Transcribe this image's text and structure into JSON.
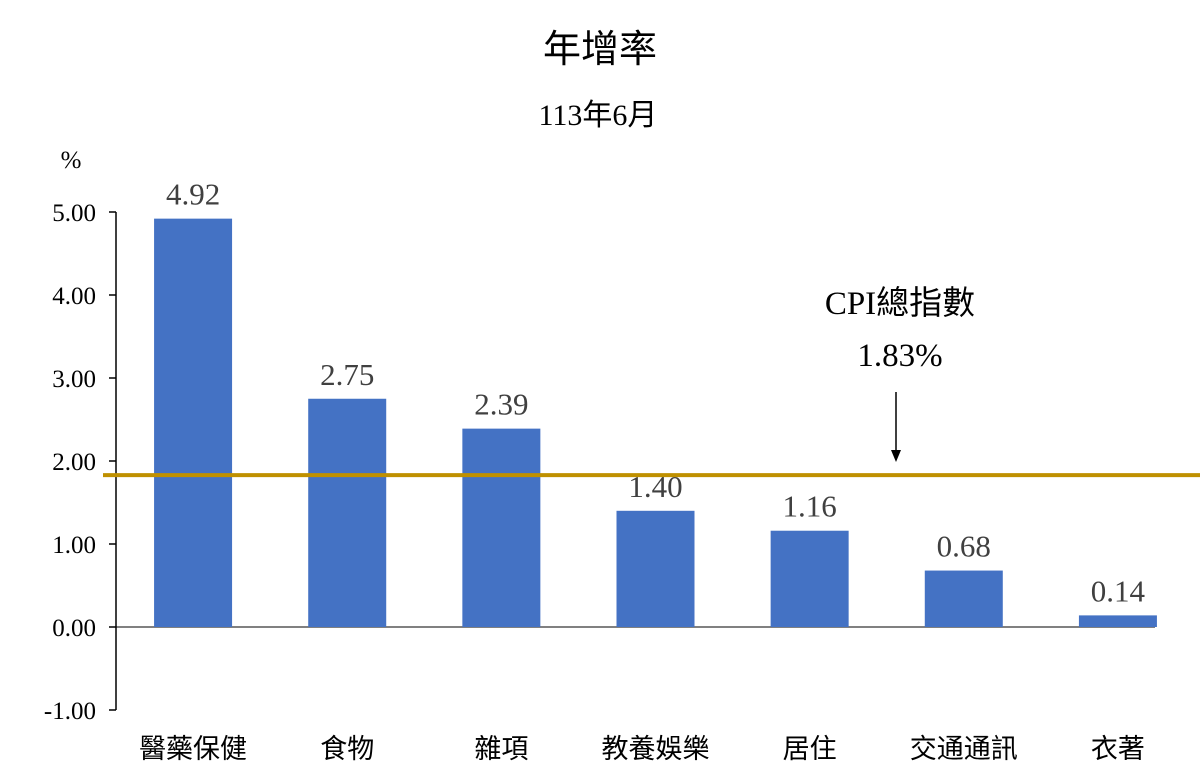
{
  "chart_data": {
    "type": "bar",
    "title": "年增率",
    "subtitle": "113年6月",
    "ylabel": "%",
    "xlabel": "",
    "categories": [
      "醫藥保健",
      "食物",
      "雜項",
      "教養娛樂",
      "居住",
      "交通通訊",
      "衣著"
    ],
    "values": [
      4.92,
      2.75,
      2.39,
      1.4,
      1.16,
      0.68,
      0.14
    ],
    "data_labels": [
      "4.92",
      "2.75",
      "2.39",
      "1.40",
      "1.16",
      "0.68",
      "0.14"
    ],
    "ylim": [
      -1,
      5
    ],
    "yticks": [
      5,
      4,
      3,
      2,
      1,
      0,
      -1
    ],
    "ytick_labels": [
      "5.00",
      "4.00",
      "3.00",
      "2.00",
      "1.00",
      "0.00",
      "-1.00"
    ],
    "grid": false,
    "reference_line": {
      "value": 1.83,
      "label_line1": "CPI總指數",
      "label_line2": "1.83%",
      "color": "#BF9000"
    },
    "colors": {
      "bar": "#4472C4",
      "axis": "#000000"
    }
  }
}
